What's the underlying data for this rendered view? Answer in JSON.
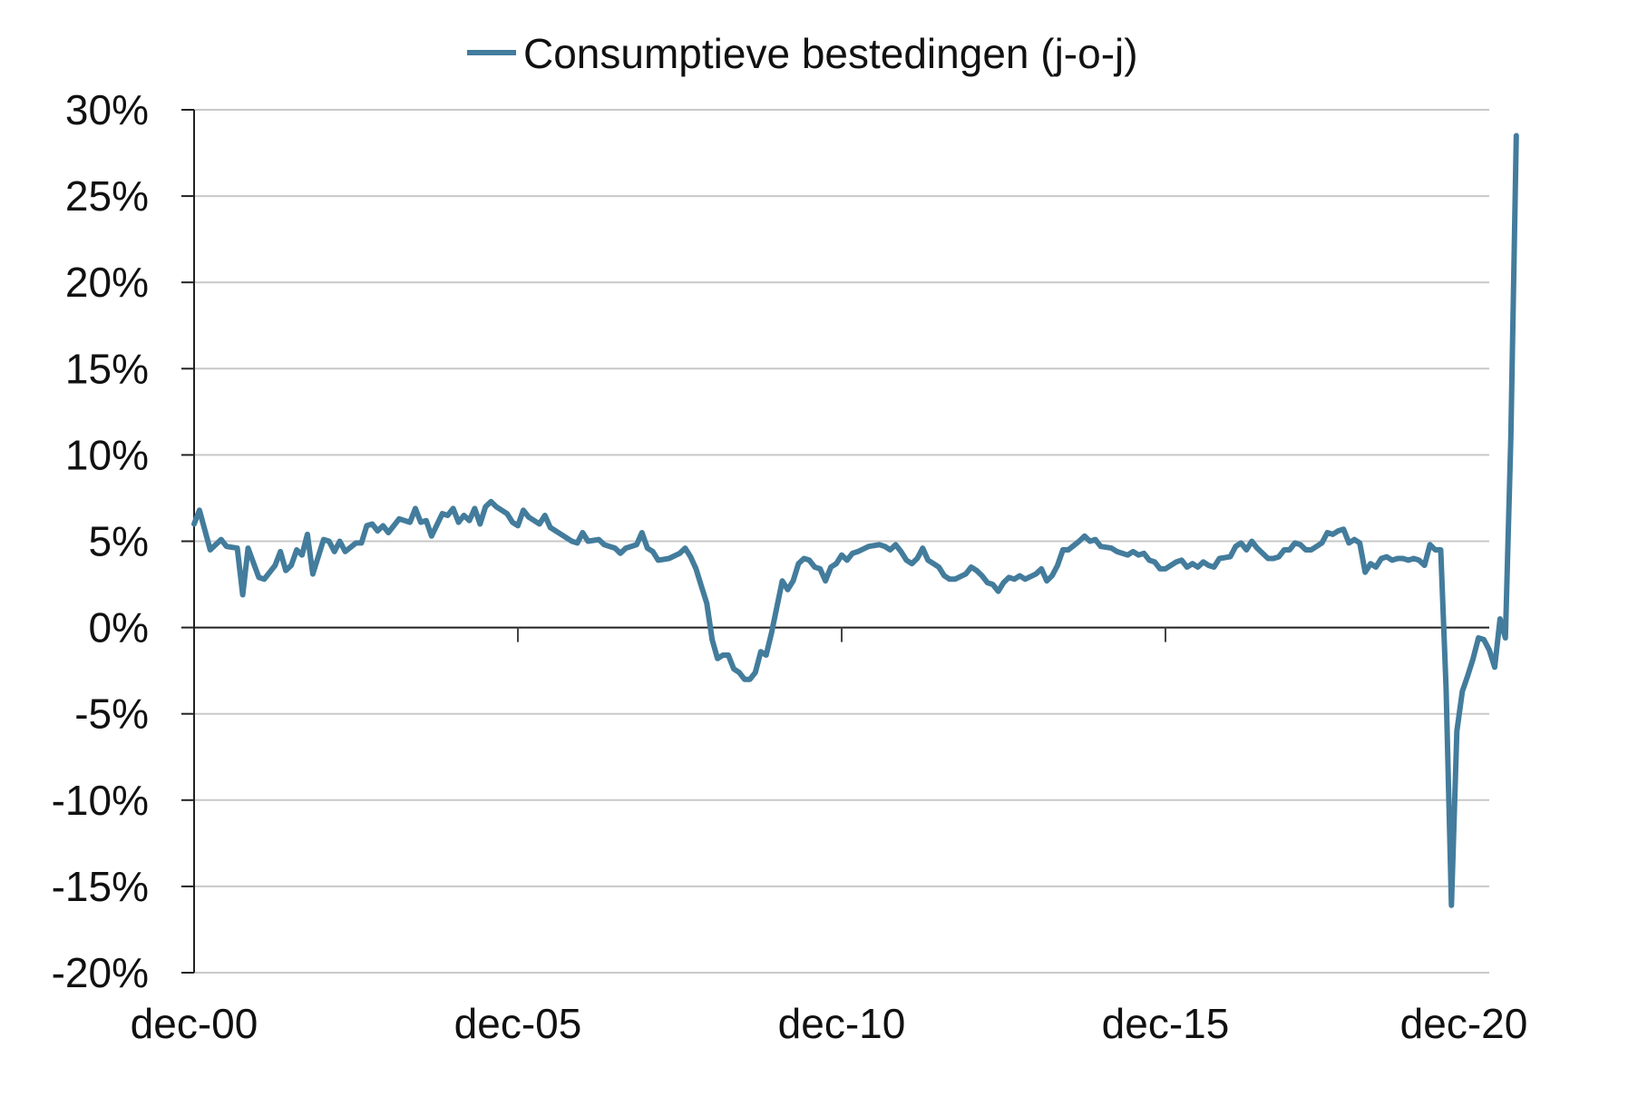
{
  "chart_data": {
    "type": "line",
    "x_labels": [
      "dec-00",
      "dec-05",
      "dec-10",
      "dec-15",
      "dec-20"
    ],
    "y_ticks": [
      30,
      25,
      20,
      15,
      10,
      5,
      0,
      -5,
      -10,
      -15,
      -20
    ],
    "y_tick_labels": [
      "30%",
      "25%",
      "20%",
      "15%",
      "10%",
      "5%",
      "0%",
      "-5%",
      "-10%",
      "-15%",
      "-20%"
    ],
    "ylim": [
      -20,
      30
    ],
    "xlim": [
      "2000-12",
      "2020-12"
    ],
    "grid": "horizontal",
    "legend_position": "top",
    "series": [
      {
        "name": "Consumptieve bestedingen (j-o-j)",
        "color": "#437c9c",
        "points": [
          [
            "2000-12",
            6.0
          ],
          [
            "2001-01",
            6.8
          ],
          [
            "2001-03",
            4.5
          ],
          [
            "2001-05",
            5.1
          ],
          [
            "2001-06",
            4.7
          ],
          [
            "2001-08",
            4.6
          ],
          [
            "2001-09",
            1.9
          ],
          [
            "2001-10",
            4.6
          ],
          [
            "2001-12",
            2.9
          ],
          [
            "2002-01",
            2.8
          ],
          [
            "2002-03",
            3.6
          ],
          [
            "2002-04",
            4.4
          ],
          [
            "2002-05",
            3.3
          ],
          [
            "2002-06",
            3.6
          ],
          [
            "2002-07",
            4.5
          ],
          [
            "2002-08",
            4.2
          ],
          [
            "2002-09",
            5.4
          ],
          [
            "2002-10",
            3.1
          ],
          [
            "2002-12",
            5.1
          ],
          [
            "2003-01",
            5.0
          ],
          [
            "2003-02",
            4.4
          ],
          [
            "2003-03",
            5.0
          ],
          [
            "2003-04",
            4.4
          ],
          [
            "2003-06",
            4.9
          ],
          [
            "2003-07",
            4.9
          ],
          [
            "2003-08",
            5.9
          ],
          [
            "2003-09",
            6.0
          ],
          [
            "2003-10",
            5.6
          ],
          [
            "2003-11",
            5.9
          ],
          [
            "2003-12",
            5.5
          ],
          [
            "2004-02",
            6.3
          ],
          [
            "2004-04",
            6.1
          ],
          [
            "2004-05",
            6.9
          ],
          [
            "2004-06",
            6.1
          ],
          [
            "2004-07",
            6.2
          ],
          [
            "2004-08",
            5.3
          ],
          [
            "2004-10",
            6.6
          ],
          [
            "2004-11",
            6.5
          ],
          [
            "2004-12",
            6.9
          ],
          [
            "2005-01",
            6.1
          ],
          [
            "2005-02",
            6.5
          ],
          [
            "2005-03",
            6.2
          ],
          [
            "2005-04",
            6.9
          ],
          [
            "2005-05",
            6.0
          ],
          [
            "2005-06",
            7.0
          ],
          [
            "2005-07",
            7.3
          ],
          [
            "2005-08",
            7.0
          ],
          [
            "2005-10",
            6.6
          ],
          [
            "2005-11",
            6.1
          ],
          [
            "2005-12",
            5.9
          ],
          [
            "2006-01",
            6.8
          ],
          [
            "2006-02",
            6.4
          ],
          [
            "2006-04",
            6.0
          ],
          [
            "2006-05",
            6.5
          ],
          [
            "2006-06",
            5.8
          ],
          [
            "2006-08",
            5.4
          ],
          [
            "2006-10",
            5.0
          ],
          [
            "2006-11",
            4.9
          ],
          [
            "2006-12",
            5.5
          ],
          [
            "2007-01",
            5.0
          ],
          [
            "2007-03",
            5.1
          ],
          [
            "2007-04",
            4.8
          ],
          [
            "2007-06",
            4.6
          ],
          [
            "2007-07",
            4.3
          ],
          [
            "2007-08",
            4.6
          ],
          [
            "2007-10",
            4.8
          ],
          [
            "2007-11",
            5.5
          ],
          [
            "2007-12",
            4.6
          ],
          [
            "2008-01",
            4.4
          ],
          [
            "2008-02",
            3.9
          ],
          [
            "2008-04",
            4.0
          ],
          [
            "2008-06",
            4.3
          ],
          [
            "2008-07",
            4.6
          ],
          [
            "2008-08",
            4.1
          ],
          [
            "2008-09",
            3.4
          ],
          [
            "2008-10",
            2.4
          ],
          [
            "2008-11",
            1.4
          ],
          [
            "2008-12",
            -0.7
          ],
          [
            "2009-01",
            -1.8
          ],
          [
            "2009-02",
            -1.6
          ],
          [
            "2009-03",
            -1.6
          ],
          [
            "2009-04",
            -2.4
          ],
          [
            "2009-05",
            -2.6
          ],
          [
            "2009-06",
            -3.0
          ],
          [
            "2009-07",
            -3.0
          ],
          [
            "2009-08",
            -2.6
          ],
          [
            "2009-09",
            -1.4
          ],
          [
            "2009-10",
            -1.6
          ],
          [
            "2009-11",
            -0.3
          ],
          [
            "2010-01",
            2.7
          ],
          [
            "2010-02",
            2.2
          ],
          [
            "2010-03",
            2.7
          ],
          [
            "2010-04",
            3.7
          ],
          [
            "2010-05",
            4.0
          ],
          [
            "2010-06",
            3.9
          ],
          [
            "2010-07",
            3.5
          ],
          [
            "2010-08",
            3.4
          ],
          [
            "2010-09",
            2.7
          ],
          [
            "2010-10",
            3.5
          ],
          [
            "2010-11",
            3.7
          ],
          [
            "2010-12",
            4.2
          ],
          [
            "2011-01",
            3.9
          ],
          [
            "2011-02",
            4.3
          ],
          [
            "2011-03",
            4.4
          ],
          [
            "2011-05",
            4.7
          ],
          [
            "2011-07",
            4.8
          ],
          [
            "2011-08",
            4.7
          ],
          [
            "2011-09",
            4.5
          ],
          [
            "2011-10",
            4.8
          ],
          [
            "2011-11",
            4.4
          ],
          [
            "2011-12",
            3.9
          ],
          [
            "2012-01",
            3.7
          ],
          [
            "2012-02",
            4.0
          ],
          [
            "2012-03",
            4.6
          ],
          [
            "2012-04",
            3.9
          ],
          [
            "2012-05",
            3.7
          ],
          [
            "2012-06",
            3.5
          ],
          [
            "2012-07",
            3.0
          ],
          [
            "2012-08",
            2.8
          ],
          [
            "2012-09",
            2.8
          ],
          [
            "2012-11",
            3.1
          ],
          [
            "2012-12",
            3.5
          ],
          [
            "2013-01",
            3.3
          ],
          [
            "2013-02",
            3.0
          ],
          [
            "2013-03",
            2.6
          ],
          [
            "2013-04",
            2.5
          ],
          [
            "2013-05",
            2.1
          ],
          [
            "2013-06",
            2.6
          ],
          [
            "2013-07",
            2.9
          ],
          [
            "2013-08",
            2.8
          ],
          [
            "2013-09",
            3.0
          ],
          [
            "2013-10",
            2.8
          ],
          [
            "2013-12",
            3.1
          ],
          [
            "2014-01",
            3.4
          ],
          [
            "2014-02",
            2.7
          ],
          [
            "2014-03",
            3.0
          ],
          [
            "2014-04",
            3.6
          ],
          [
            "2014-05",
            4.5
          ],
          [
            "2014-06",
            4.5
          ],
          [
            "2014-08",
            5.0
          ],
          [
            "2014-09",
            5.3
          ],
          [
            "2014-10",
            5.0
          ],
          [
            "2014-11",
            5.1
          ],
          [
            "2014-12",
            4.7
          ],
          [
            "2015-02",
            4.6
          ],
          [
            "2015-03",
            4.4
          ],
          [
            "2015-05",
            4.2
          ],
          [
            "2015-06",
            4.4
          ],
          [
            "2015-07",
            4.2
          ],
          [
            "2015-08",
            4.3
          ],
          [
            "2015-09",
            3.9
          ],
          [
            "2015-10",
            3.8
          ],
          [
            "2015-11",
            3.4
          ],
          [
            "2015-12",
            3.4
          ],
          [
            "2016-02",
            3.8
          ],
          [
            "2016-03",
            3.9
          ],
          [
            "2016-04",
            3.5
          ],
          [
            "2016-05",
            3.7
          ],
          [
            "2016-06",
            3.5
          ],
          [
            "2016-07",
            3.8
          ],
          [
            "2016-08",
            3.6
          ],
          [
            "2016-09",
            3.5
          ],
          [
            "2016-10",
            4.0
          ],
          [
            "2016-12",
            4.1
          ],
          [
            "2017-01",
            4.7
          ],
          [
            "2017-02",
            4.9
          ],
          [
            "2017-03",
            4.5
          ],
          [
            "2017-04",
            5.0
          ],
          [
            "2017-05",
            4.6
          ],
          [
            "2017-07",
            4.0
          ],
          [
            "2017-08",
            4.0
          ],
          [
            "2017-09",
            4.1
          ],
          [
            "2017-10",
            4.5
          ],
          [
            "2017-11",
            4.5
          ],
          [
            "2017-12",
            4.9
          ],
          [
            "2018-01",
            4.8
          ],
          [
            "2018-02",
            4.5
          ],
          [
            "2018-03",
            4.5
          ],
          [
            "2018-05",
            4.9
          ],
          [
            "2018-06",
            5.5
          ],
          [
            "2018-07",
            5.4
          ],
          [
            "2018-08",
            5.6
          ],
          [
            "2018-09",
            5.7
          ],
          [
            "2018-10",
            4.9
          ],
          [
            "2018-11",
            5.1
          ],
          [
            "2018-12",
            4.9
          ],
          [
            "2019-01",
            3.2
          ],
          [
            "2019-02",
            3.7
          ],
          [
            "2019-03",
            3.5
          ],
          [
            "2019-04",
            4.0
          ],
          [
            "2019-05",
            4.1
          ],
          [
            "2019-06",
            3.9
          ],
          [
            "2019-07",
            4.0
          ],
          [
            "2019-08",
            4.0
          ],
          [
            "2019-09",
            3.9
          ],
          [
            "2019-10",
            4.0
          ],
          [
            "2019-11",
            3.9
          ],
          [
            "2019-12",
            3.6
          ],
          [
            "2020-01",
            4.8
          ],
          [
            "2020-02",
            4.5
          ],
          [
            "2020-03",
            4.5
          ],
          [
            "2020-04",
            -3.5
          ],
          [
            "2020-05",
            -16.1
          ],
          [
            "2020-06",
            -6.0
          ],
          [
            "2020-07",
            -3.7
          ],
          [
            "2020-08",
            -2.8
          ],
          [
            "2020-09",
            -1.8
          ],
          [
            "2020-10",
            -0.6
          ],
          [
            "2020-11",
            -0.7
          ],
          [
            "2020-12",
            -1.3
          ],
          [
            "2021-01",
            -2.3
          ],
          [
            "2021-02",
            0.5
          ],
          [
            "2021-03",
            -0.6
          ],
          [
            "2021-04",
            11.0
          ],
          [
            "2021-05",
            28.5
          ]
        ]
      }
    ]
  }
}
